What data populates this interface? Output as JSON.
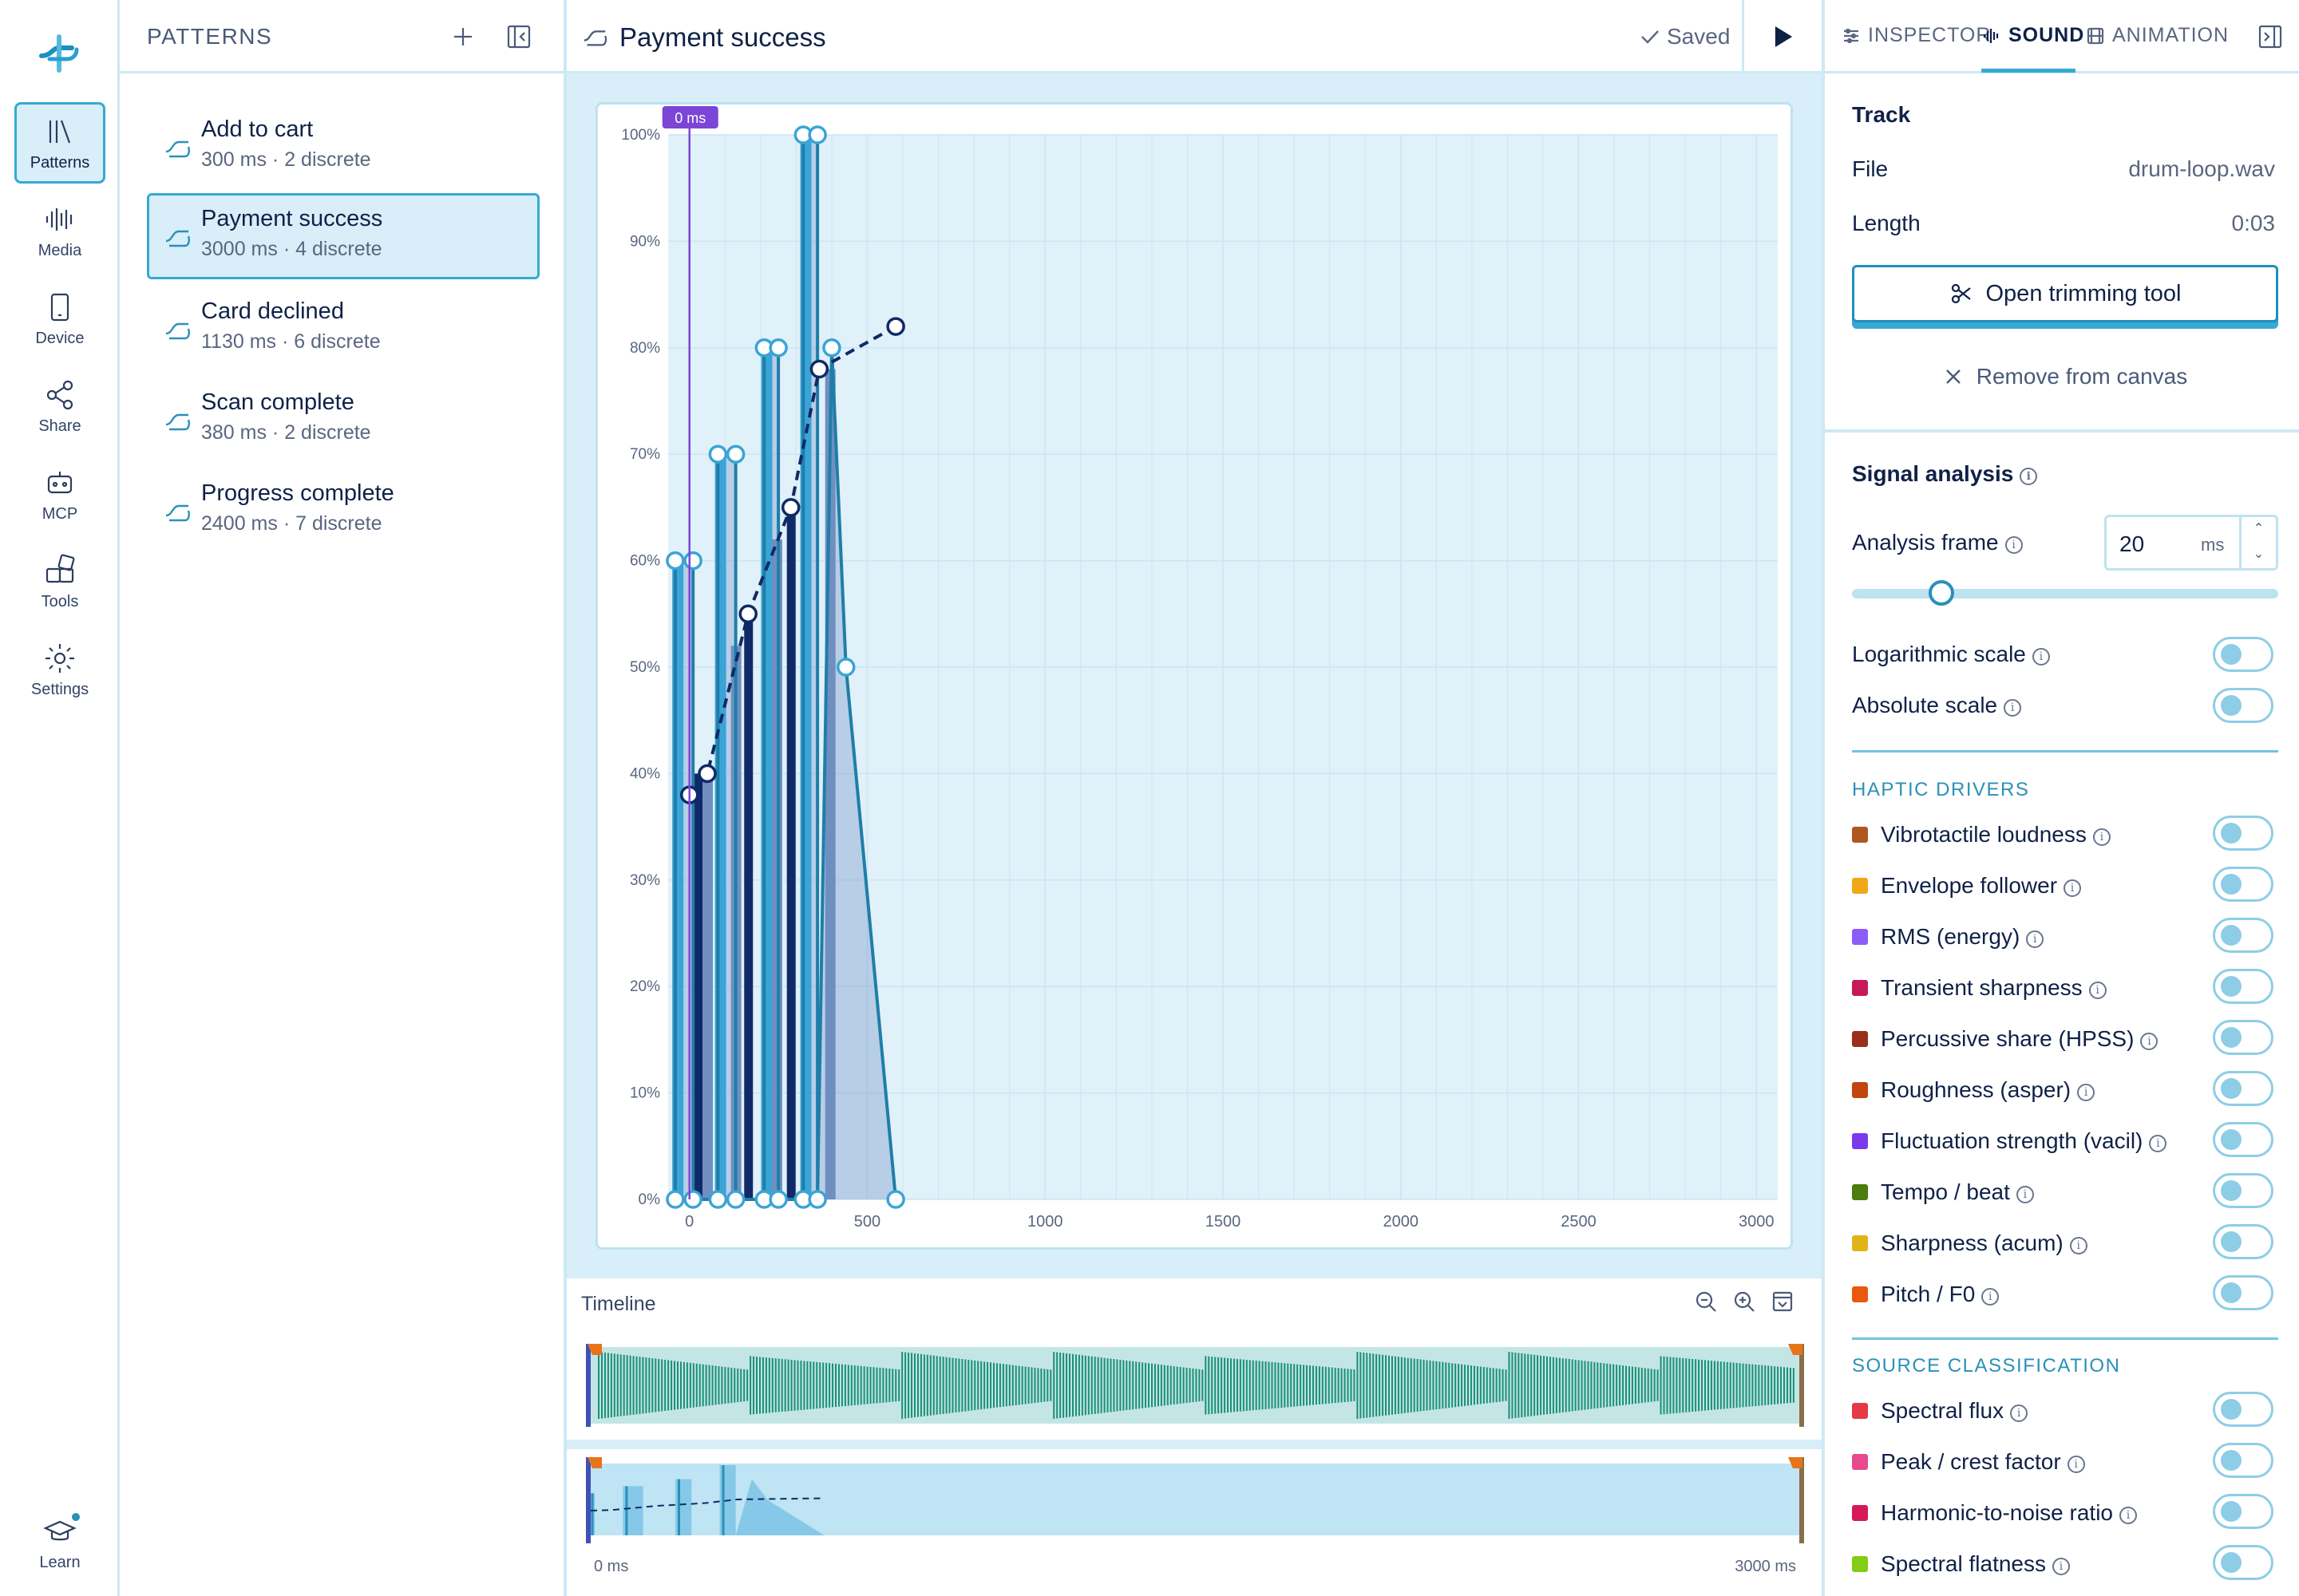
{
  "rail": {
    "items": [
      {
        "label": "Patterns",
        "icon": "library-icon"
      },
      {
        "label": "Media",
        "icon": "waveform-icon"
      },
      {
        "label": "Device",
        "icon": "phone-icon"
      },
      {
        "label": "Share",
        "icon": "share-icon"
      },
      {
        "label": "MCP",
        "icon": "robot-icon"
      },
      {
        "label": "Tools",
        "icon": "tools-icon"
      },
      {
        "label": "Settings",
        "icon": "gear-icon"
      }
    ],
    "learn": "Learn"
  },
  "patterns": {
    "title": "PATTERNS",
    "items": [
      {
        "name": "Add to cart",
        "meta": "300 ms · 2 discrete"
      },
      {
        "name": "Payment success",
        "meta": "3000 ms · 4 discrete"
      },
      {
        "name": "Card declined",
        "meta": "1130 ms · 6 discrete"
      },
      {
        "name": "Scan complete",
        "meta": "380 ms · 2 discrete"
      },
      {
        "name": "Progress complete",
        "meta": "2400 ms · 7 discrete"
      }
    ]
  },
  "editor": {
    "title": "Payment success",
    "saved": "Saved",
    "playhead_label": "0 ms",
    "timeline_title": "Timeline",
    "range_start": "0 ms",
    "range_end": "3000 ms"
  },
  "chart_data": {
    "type": "line",
    "x_ticks": [
      "0",
      "500",
      "1000",
      "1500",
      "2000",
      "2500",
      "3000"
    ],
    "y_ticks": [
      "0%",
      "10%",
      "20%",
      "30%",
      "40%",
      "50%",
      "60%",
      "70%",
      "80%",
      "90%",
      "100%"
    ],
    "xlim": [
      -60,
      3060
    ],
    "ylim": [
      0,
      100
    ],
    "envelope_outline": {
      "x": [
        -40,
        -40,
        10,
        10,
        80,
        80,
        130,
        130,
        210,
        210,
        250,
        250,
        320,
        320,
        360,
        360,
        400,
        440,
        580
      ],
      "y": [
        0,
        60,
        60,
        0,
        0,
        70,
        70,
        0,
        0,
        80,
        80,
        0,
        0,
        100,
        100,
        0,
        80,
        50,
        0
      ]
    },
    "envelope_fill": {
      "x": [
        -40,
        -40,
        10,
        10,
        80,
        80,
        130,
        130,
        210,
        210,
        250,
        250,
        320,
        320,
        360,
        360,
        400,
        440,
        580
      ],
      "y": [
        0,
        60,
        60,
        0,
        0,
        70,
        70,
        0,
        0,
        80,
        80,
        0,
        0,
        100,
        100,
        0,
        80,
        50,
        0
      ]
    },
    "discrete_events": [
      {
        "x": -35,
        "y": 60
      },
      {
        "x": 85,
        "y": 70
      },
      {
        "x": 215,
        "y": 80
      },
      {
        "x": 325,
        "y": 100
      }
    ],
    "dark_events": [
      {
        "x": 25,
        "y": 40
      },
      {
        "x": 165,
        "y": 55
      },
      {
        "x": 285,
        "y": 65
      }
    ],
    "mid_events": [
      {
        "x": 50,
        "y": 40
      },
      {
        "x": 130,
        "y": 52
      },
      {
        "x": 245,
        "y": 62
      },
      {
        "x": 395,
        "y": 78
      }
    ],
    "trend_line": {
      "x": [
        0,
        50,
        165,
        285,
        365,
        580
      ],
      "y": [
        38,
        40,
        55,
        65,
        78,
        82
      ]
    },
    "fill_color": "#d6ecf7",
    "bar_color": "#3aa4d6",
    "dark_color": "#0f2a66",
    "mid_color": "#6f8fc0",
    "outline_color": "#1f7ea8"
  },
  "inspector": {
    "tabs": [
      "INSPECTOR",
      "SOUND",
      "ANIMATION"
    ],
    "track_title": "Track",
    "file_label": "File",
    "file_value": "drum-loop.wav",
    "length_label": "Length",
    "length_value": "0:03",
    "trim_button": "Open trimming tool",
    "remove_button": "Remove from canvas",
    "signal_title": "Signal analysis",
    "analysis_frame_label": "Analysis frame",
    "analysis_frame_value": "20",
    "analysis_frame_unit": "ms",
    "log_scale": "Logarithmic scale",
    "abs_scale": "Absolute scale",
    "haptic_header": "HAPTIC DRIVERS",
    "drivers": [
      {
        "label": "Vibrotactile loudness",
        "color": "#b0561e"
      },
      {
        "label": "Envelope follower",
        "color": "#f0a818"
      },
      {
        "label": "RMS (energy)",
        "color": "#8b5cf6"
      },
      {
        "label": "Transient sharpness",
        "color": "#c8185a"
      },
      {
        "label": "Percussive share (HPSS)",
        "color": "#9a2e18"
      },
      {
        "label": "Roughness (asper)",
        "color": "#c2440e"
      },
      {
        "label": "Fluctuation strength (vacil)",
        "color": "#7c3aed"
      },
      {
        "label": "Tempo / beat",
        "color": "#4d7c0f"
      },
      {
        "label": "Sharpness (acum)",
        "color": "#e0b416"
      },
      {
        "label": "Pitch / F0",
        "color": "#ea580c"
      }
    ],
    "source_header": "SOURCE CLASSIFICATION",
    "sources": [
      {
        "label": "Spectral flux",
        "color": "#e63946"
      },
      {
        "label": "Peak / crest factor",
        "color": "#e84a8e"
      },
      {
        "label": "Harmonic-to-noise ratio",
        "color": "#d6195b"
      },
      {
        "label": "Spectral flatness",
        "color": "#84cc16"
      }
    ]
  }
}
